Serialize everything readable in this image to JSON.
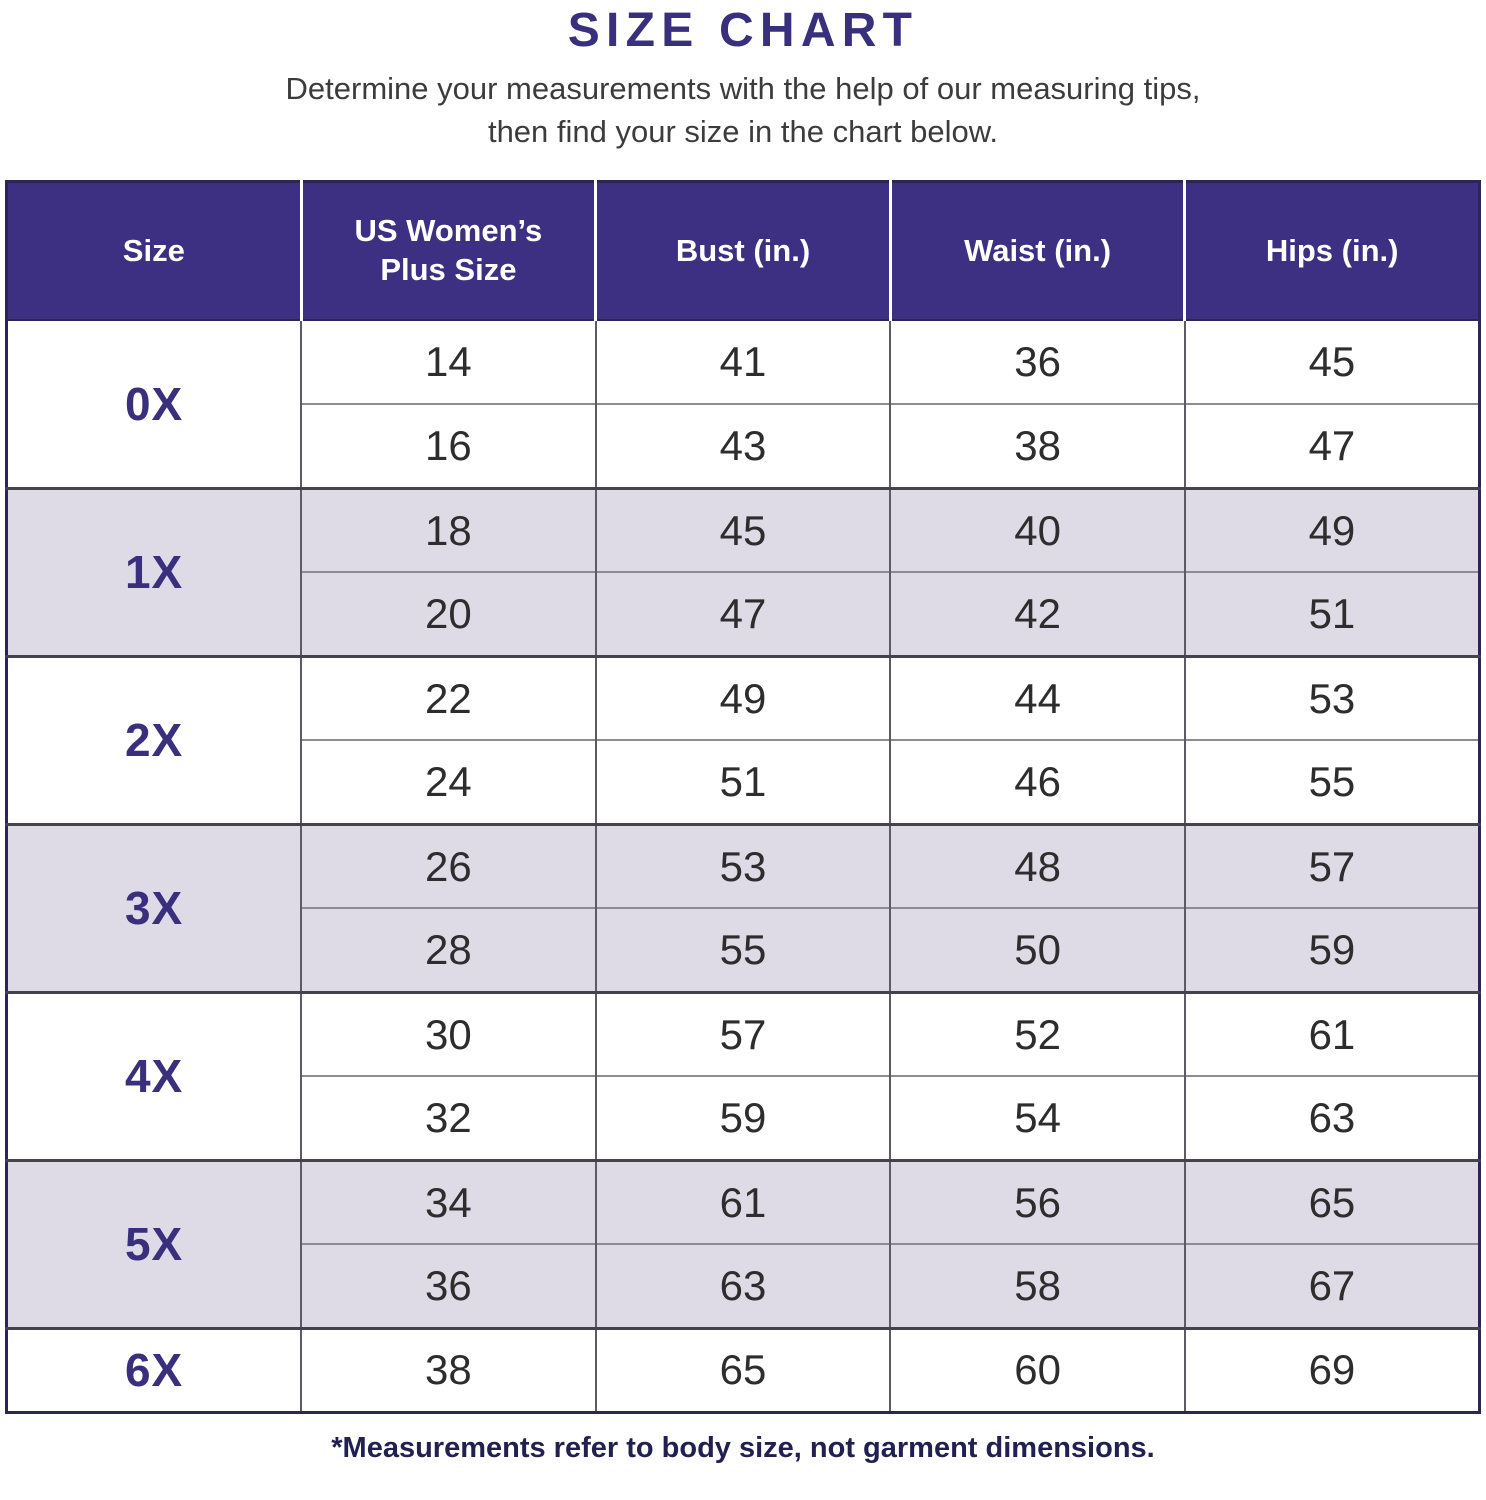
{
  "title": "SIZE CHART",
  "subtitle": {
    "line1": "Determine your measurements with the help of our measuring tips,",
    "line2": "then find your size in the chart below."
  },
  "footnote": "*Measurements refer to body size, not garment dimensions.",
  "colors": {
    "header_bg": "#3d3082",
    "title_text": "#38307c",
    "size_label_text": "#3a2f7d",
    "shaded_row_bg": "#dedae6",
    "number_text": "#2d2d2d",
    "subtitle_text": "#3c3c3c",
    "footnote_text": "#222050",
    "outer_border": "#2b2653",
    "group_divider": "#454250",
    "sub_row_divider": "#8d8a95",
    "column_divider": "#5d5a66",
    "header_divider": "#ffffff",
    "header_text": "#ffffff"
  },
  "chart_data": {
    "type": "table",
    "title": "SIZE CHART",
    "columns": [
      "Size",
      "US Women’s Plus Size",
      "Bust (in.)",
      "Waist (in.)",
      "Hips (in.)"
    ],
    "groups": [
      {
        "size": "0X",
        "shaded": false,
        "rows": [
          [
            14,
            41,
            36,
            45
          ],
          [
            16,
            43,
            38,
            47
          ]
        ]
      },
      {
        "size": "1X",
        "shaded": true,
        "rows": [
          [
            18,
            45,
            40,
            49
          ],
          [
            20,
            47,
            42,
            51
          ]
        ]
      },
      {
        "size": "2X",
        "shaded": false,
        "rows": [
          [
            22,
            49,
            44,
            53
          ],
          [
            24,
            51,
            46,
            55
          ]
        ]
      },
      {
        "size": "3X",
        "shaded": true,
        "rows": [
          [
            26,
            53,
            48,
            57
          ],
          [
            28,
            55,
            50,
            59
          ]
        ]
      },
      {
        "size": "4X",
        "shaded": false,
        "rows": [
          [
            30,
            57,
            52,
            61
          ],
          [
            32,
            59,
            54,
            63
          ]
        ]
      },
      {
        "size": "5X",
        "shaded": true,
        "rows": [
          [
            34,
            61,
            56,
            65
          ],
          [
            36,
            63,
            58,
            67
          ]
        ]
      },
      {
        "size": "6X",
        "shaded": false,
        "rows": [
          [
            38,
            65,
            60,
            69
          ]
        ]
      }
    ]
  }
}
